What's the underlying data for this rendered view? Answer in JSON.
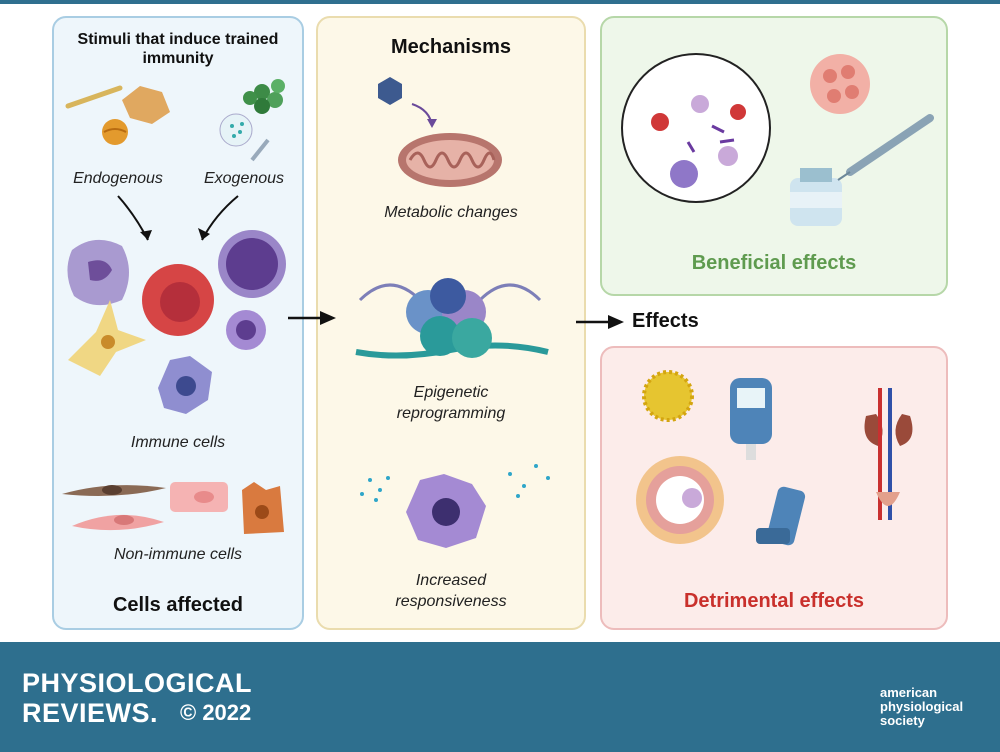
{
  "cells_panel": {
    "stimuli_title": "Stimuli that induce trained immunity",
    "endogenous": "Endogenous",
    "exogenous": "Exogenous",
    "immune_cells": "Immune cells",
    "non_immune_cells": "Non-immune cells",
    "footer_title": "Cells affected"
  },
  "mechanisms_panel": {
    "title": "Mechanisms",
    "metabolic": "Metabolic changes",
    "epigenetic": "Epigenetic reprogramming",
    "responsiveness": "Increased responsiveness"
  },
  "effects": {
    "label": "Effects",
    "beneficial": "Beneficial effects",
    "detrimental": "Detrimental effects",
    "beneficial_color": "#5f9b4f",
    "detrimental_color": "#c9302c"
  },
  "footer": {
    "journal_line1": "PHYSIOLOGICAL",
    "journal_line2": "REVIEWS.",
    "copyright": "© 2022",
    "society_line1": "american",
    "society_line2": "physiological",
    "society_line3": "society"
  },
  "icons": [
    "crystal-icon",
    "virus-icon",
    "syringe-icon",
    "mitochondrion-icon",
    "nucleosome-icon",
    "macrophage-icon",
    "vaccine-vial-icon",
    "tumor-icon",
    "glucometer-icon",
    "inhaler-icon",
    "kidney-icon",
    "artery-icon",
    "pollen-icon",
    "society-logo-icon"
  ]
}
